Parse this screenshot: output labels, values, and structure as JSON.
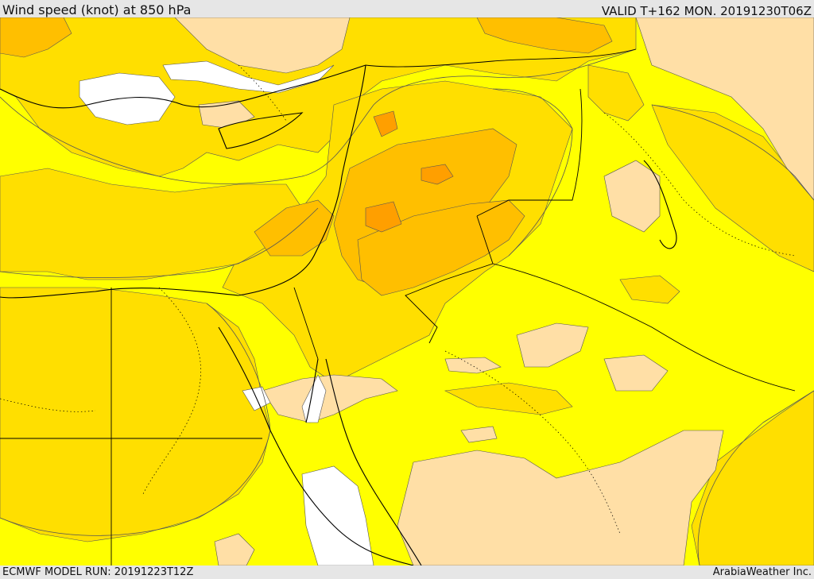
{
  "header": {
    "title": "Wind speed (knot) at 850 hPa",
    "valid": "VALID T+162 MON. 20191230T06Z"
  },
  "footer": {
    "model_run": "ECMWF MODEL RUN: 20191223T12Z",
    "credit": "ArabiaWeather Inc."
  },
  "map": {
    "fill_colors": {
      "calm": "#ffffff",
      "light": "#ffdfa6",
      "moderate": "#ffff00",
      "fresh": "#ffdf00",
      "strong": "#ffbf00",
      "very_strong": "#ff9f00"
    },
    "line_colors": {
      "borders": "#000000",
      "coast": "#000000",
      "contour": "#555555"
    }
  }
}
